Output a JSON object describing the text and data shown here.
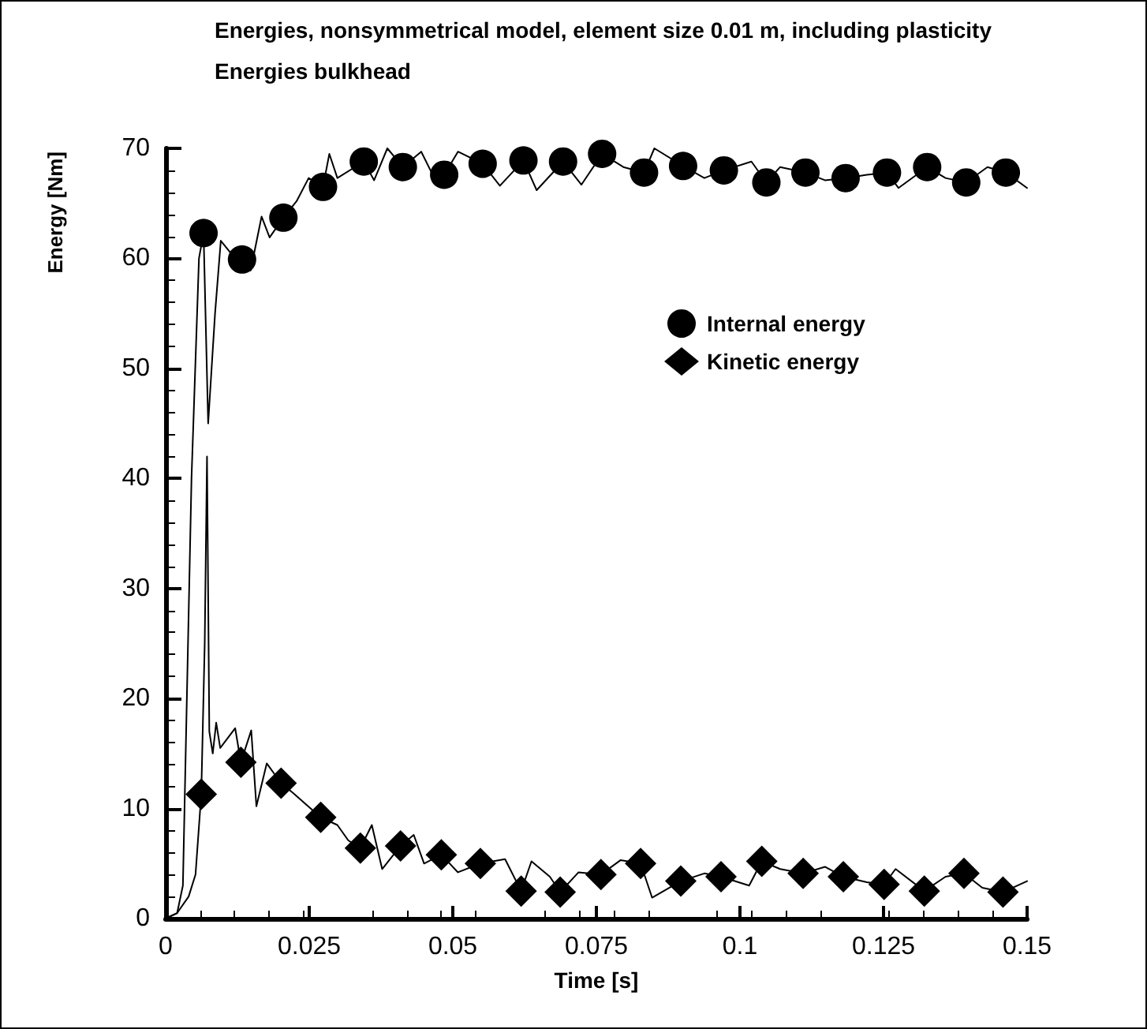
{
  "chart_data": {
    "type": "line",
    "title": "Energies, nonsymmetrical model, element size 0.01 m, including plasticity",
    "subtitle": "Energies bulkhead",
    "xlabel": "Time [s]",
    "ylabel": "Energy [Nm]",
    "xlim": [
      0,
      0.15
    ],
    "xticks": [
      0,
      0.025,
      0.05,
      0.075,
      0.1,
      0.125,
      0.15
    ],
    "ylim": [
      0,
      70
    ],
    "yticks": [
      0,
      10,
      20,
      30,
      40,
      50,
      60,
      70
    ],
    "grid": false,
    "legend": "right",
    "line_style": "solid",
    "series": [
      {
        "type": "line",
        "marker": "none",
        "color": "#000000",
        "x": [
          0,
          0.002,
          0.003,
          0.0045,
          0.0058,
          0.0066,
          0.0074,
          0.0086,
          0.0096,
          0.0113,
          0.0133,
          0.0148,
          0.0167,
          0.0181,
          0.0205,
          0.0228,
          0.0249,
          0.0274,
          0.0285,
          0.0299,
          0.0345,
          0.0363,
          0.0386,
          0.0413,
          0.0445,
          0.0463,
          0.0485,
          0.0509,
          0.0552,
          0.0582,
          0.0623,
          0.0646,
          0.0692,
          0.0724,
          0.076,
          0.0797,
          0.0833,
          0.0851,
          0.0901,
          0.0938,
          0.0972,
          0.102,
          0.1046,
          0.107,
          0.1114,
          0.1148,
          0.1184,
          0.1221,
          0.1256,
          0.1276,
          0.1326,
          0.1358,
          0.1394,
          0.1431,
          0.1463,
          0.15
        ],
        "values": [
          0,
          0.5,
          3,
          40,
          60,
          62.3,
          45,
          55,
          61.6,
          60.5,
          59.9,
          58.9,
          63.8,
          61.9,
          63.7,
          65.2,
          67.3,
          66.5,
          69.5,
          67.3,
          68.8,
          67.1,
          70,
          68.3,
          69.7,
          67.8,
          67.6,
          69.7,
          68.6,
          66.6,
          68.9,
          66.2,
          68.8,
          66.7,
          69.5,
          68.3,
          67.8,
          70,
          68.4,
          67.3,
          68.0,
          68.8,
          66.9,
          68.3,
          67.8,
          67.1,
          67.3,
          67.6,
          67.8,
          66.4,
          68.3,
          67.3,
          66.9,
          68.3,
          67.8,
          66.4
        ]
      },
      {
        "type": "line",
        "marker": "none",
        "color": "#000000",
        "x": [
          0,
          0.002,
          0.004,
          0.0052,
          0.0062,
          0.0068,
          0.0072,
          0.0076,
          0.0082,
          0.0088,
          0.0095,
          0.0121,
          0.0131,
          0.0149,
          0.0158,
          0.0176,
          0.0201,
          0.0222,
          0.027,
          0.0299,
          0.0318,
          0.0339,
          0.0359,
          0.0377,
          0.0409,
          0.0432,
          0.045,
          0.048,
          0.0509,
          0.0548,
          0.0591,
          0.0619,
          0.0637,
          0.0669,
          0.0687,
          0.0719,
          0.0758,
          0.0792,
          0.0827,
          0.0847,
          0.0897,
          0.0938,
          0.0967,
          0.1016,
          0.1038,
          0.107,
          0.111,
          0.1148,
          0.118,
          0.1221,
          0.1251,
          0.1271,
          0.1321,
          0.1358,
          0.139,
          0.1422,
          0.1458,
          0.15
        ],
        "values": [
          0,
          0.5,
          2,
          4,
          11.3,
          25,
          42,
          17,
          15,
          17.8,
          15.5,
          17.3,
          14.2,
          17.1,
          10.2,
          14.1,
          12.3,
          11.4,
          9.2,
          8.5,
          7.1,
          6.4,
          8.5,
          4.5,
          6.6,
          7.6,
          5.0,
          5.8,
          4.2,
          5.0,
          5.4,
          2.5,
          5.2,
          3.8,
          2.4,
          4.2,
          4.0,
          5.3,
          5.0,
          1.9,
          3.4,
          4.1,
          3.8,
          3.0,
          5.2,
          4.5,
          4.1,
          4.7,
          3.8,
          3.3,
          3.1,
          4.5,
          2.5,
          3.8,
          4.1,
          2.8,
          2.4,
          3.4
        ]
      },
      {
        "type": "scatter",
        "name": "Internal energy",
        "marker": "circle",
        "color": "#000000",
        "x": [
          0.0066,
          0.0133,
          0.0205,
          0.0274,
          0.0345,
          0.0413,
          0.0485,
          0.0552,
          0.0623,
          0.0692,
          0.076,
          0.0833,
          0.0901,
          0.0972,
          0.1046,
          0.1114,
          0.1184,
          0.1256,
          0.1326,
          0.1394,
          0.1463
        ],
        "values": [
          62.3,
          59.9,
          63.7,
          66.5,
          68.8,
          68.3,
          67.6,
          68.6,
          68.9,
          68.8,
          69.5,
          67.8,
          68.4,
          68.0,
          66.9,
          67.8,
          67.3,
          67.8,
          68.3,
          66.9,
          67.8
        ]
      },
      {
        "type": "scatter",
        "name": "Kinetic energy",
        "marker": "diamond",
        "color": "#000000",
        "x": [
          0.0062,
          0.0131,
          0.0201,
          0.027,
          0.0339,
          0.0409,
          0.048,
          0.0548,
          0.0619,
          0.0687,
          0.0758,
          0.0827,
          0.0897,
          0.0967,
          0.1038,
          0.111,
          0.118,
          0.1251,
          0.1321,
          0.139,
          0.1458
        ],
        "values": [
          11.3,
          14.2,
          12.3,
          9.2,
          6.4,
          6.6,
          5.8,
          5.0,
          2.5,
          2.4,
          4.0,
          5.0,
          3.4,
          3.8,
          5.2,
          4.1,
          3.8,
          3.1,
          2.5,
          4.1,
          2.4
        ]
      }
    ]
  }
}
